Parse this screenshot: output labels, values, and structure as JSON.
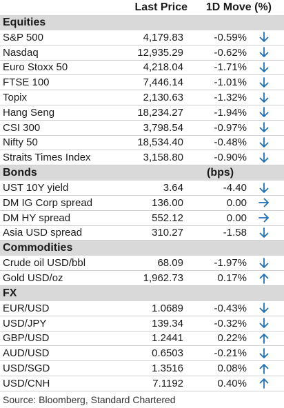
{
  "header": {
    "col_last": "Last Price",
    "col_move": "1D Move (%)"
  },
  "sections": [
    {
      "title": "Equities",
      "unit": "",
      "rows": [
        {
          "name": "S&P 500",
          "last": "4,179.83",
          "move": "-0.59%",
          "dir": "down"
        },
        {
          "name": "Nasdaq",
          "last": "12,935.29",
          "move": "-0.62%",
          "dir": "down"
        },
        {
          "name": "Euro Stoxx 50",
          "last": "4,218.04",
          "move": "-1.71%",
          "dir": "down"
        },
        {
          "name": "FTSE 100",
          "last": "7,446.14",
          "move": "-1.01%",
          "dir": "down"
        },
        {
          "name": "Topix",
          "last": "2,130.63",
          "move": "-1.32%",
          "dir": "down"
        },
        {
          "name": "Hang Seng",
          "last": "18,234.27",
          "move": "-1.94%",
          "dir": "down"
        },
        {
          "name": "CSI 300",
          "last": "3,798.54",
          "move": "-0.97%",
          "dir": "down"
        },
        {
          "name": "Nifty 50",
          "last": "18,534.40",
          "move": "-0.48%",
          "dir": "down"
        },
        {
          "name": "Straits Times Index",
          "last": "3,158.80",
          "move": "-0.90%",
          "dir": "down"
        }
      ]
    },
    {
      "title": "Bonds",
      "unit": "(bps)",
      "rows": [
        {
          "name": "UST 10Y yield",
          "last": "3.64",
          "move": "-4.40",
          "dir": "down"
        },
        {
          "name": "DM IG Corp spread",
          "last": "136.00",
          "move": "0.00",
          "dir": "flat"
        },
        {
          "name": "DM HY spread",
          "last": "552.12",
          "move": "0.00",
          "dir": "flat"
        },
        {
          "name": "Asia USD spread",
          "last": "310.27",
          "move": "-1.58",
          "dir": "down"
        }
      ]
    },
    {
      "title": "Commodities",
      "unit": "",
      "rows": [
        {
          "name": "Crude oil USD/bbl",
          "last": "68.09",
          "move": "-1.97%",
          "dir": "down"
        },
        {
          "name": "Gold USD/oz",
          "last": "1,962.73",
          "move": "0.17%",
          "dir": "up"
        }
      ]
    },
    {
      "title": "FX",
      "unit": "",
      "rows": [
        {
          "name": "EUR/USD",
          "last": "1.0689",
          "move": "-0.43%",
          "dir": "down"
        },
        {
          "name": "USD/JPY",
          "last": "139.34",
          "move": "-0.32%",
          "dir": "down"
        },
        {
          "name": "GBP/USD",
          "last": "1.2441",
          "move": "0.22%",
          "dir": "up"
        },
        {
          "name": "AUD/USD",
          "last": "0.6503",
          "move": "-0.21%",
          "dir": "down"
        },
        {
          "name": "USD/SGD",
          "last": "1.3516",
          "move": "0.08%",
          "dir": "up"
        },
        {
          "name": "USD/CNH",
          "last": "7.1192",
          "move": "0.40%",
          "dir": "up"
        }
      ]
    }
  ],
  "source": "Source: Bloomberg, Standard Chartered",
  "colors": {
    "arrow": "#1f6fb5",
    "section_bg": "#d9d9d9"
  },
  "icons": {
    "down": "arrow-down-icon",
    "up": "arrow-up-icon",
    "flat": "arrow-right-icon"
  }
}
